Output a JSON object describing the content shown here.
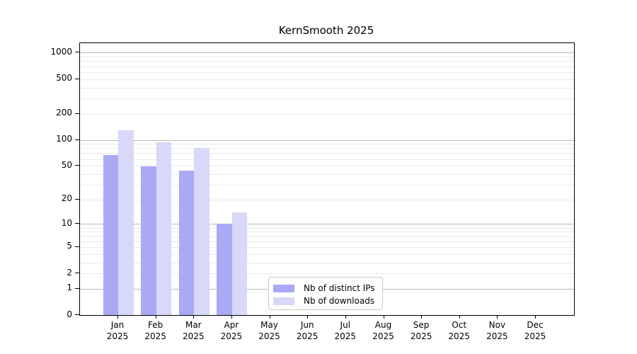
{
  "figure": {
    "title": "KernSmooth 2025"
  },
  "chart_data": {
    "type": "bar",
    "title": "KernSmooth 2025",
    "categories": [
      "Jan 2025",
      "Feb 2025",
      "Mar 2025",
      "Apr 2025",
      "May 2025",
      "Jun 2025",
      "Jul 2025",
      "Aug 2025",
      "Sep 2025",
      "Oct 2025",
      "Nov 2025",
      "Dec 2025"
    ],
    "x_tick_month": [
      "Jan",
      "Feb",
      "Mar",
      "Apr",
      "May",
      "Jun",
      "Jul",
      "Aug",
      "Sep",
      "Oct",
      "Nov",
      "Dec"
    ],
    "x_tick_year": "2025",
    "series": [
      {
        "name": "Nb of distinct IPs",
        "color": "#a9a9f4",
        "values": [
          67,
          49,
          44,
          10,
          0,
          0,
          0,
          0,
          0,
          0,
          0,
          0
        ]
      },
      {
        "name": "Nb of downloads",
        "color": "#d8d8f9",
        "values": [
          128,
          94,
          80,
          14,
          0,
          0,
          0,
          0,
          0,
          0,
          0,
          0
        ]
      }
    ],
    "yticks": [
      0,
      1,
      2,
      5,
      10,
      20,
      50,
      100,
      200,
      500,
      1000
    ],
    "minor_gridline_multipliers": [
      3,
      4,
      6,
      7,
      8,
      9
    ],
    "y_scale": "log10(1+y)",
    "ylim": [
      0,
      1285
    ],
    "grid": true,
    "legend_position": "lower center",
    "colors": {
      "major_grid": "#b9b9b9",
      "minor_grid": "#eaeaea",
      "spine": "#000000",
      "text": "#000000",
      "background": "#ffffff"
    }
  }
}
